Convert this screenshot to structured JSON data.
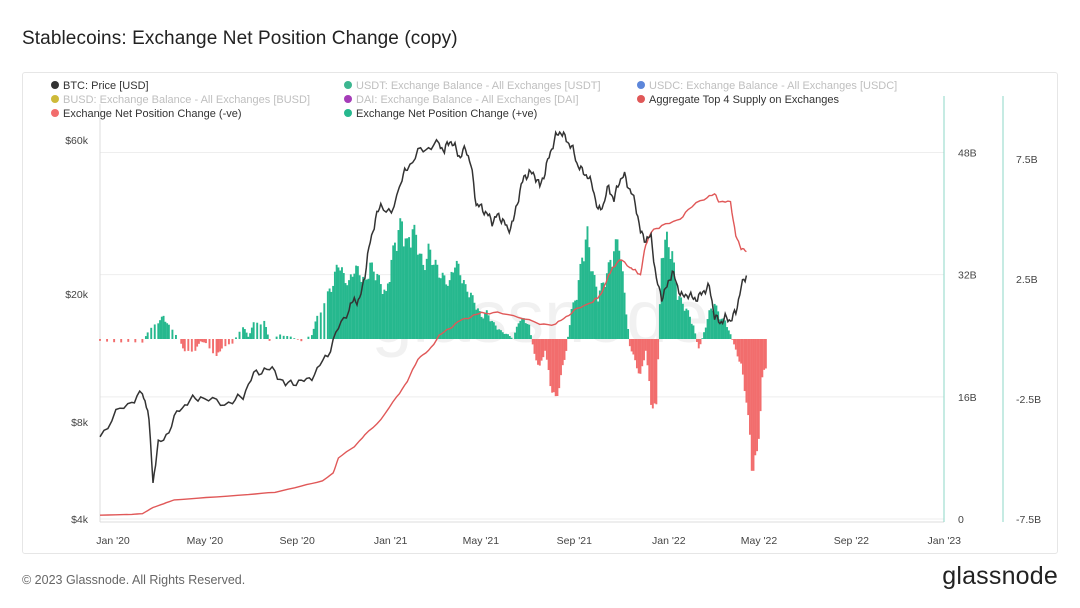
{
  "header": {
    "title": "Stablecoins: Exchange Net Position Change (copy)"
  },
  "footer": {
    "copyright": "© 2023 Glassnode. All Rights Reserved.",
    "brand": "glassnode"
  },
  "watermark": "glassnode",
  "colors": {
    "btc": "#333333",
    "usdt": "#27ae84",
    "usdc": "#4a79d6",
    "busd": "#c9b224",
    "dai": "#9b27b0",
    "aggregate": "#e05858",
    "neg": "#f26d6d",
    "pos": "#26b88e",
    "grid": "#eeeeee"
  },
  "chart_data": {
    "type": "line",
    "title": "Stablecoins: Exchange Net Position Change (copy)",
    "legend": [
      {
        "label": "BTC: Price [USD]",
        "color": "#333333",
        "active": true
      },
      {
        "label": "USDT: Exchange Balance - All Exchanges [USDT]",
        "color": "#27ae84",
        "active": false
      },
      {
        "label": "USDC: Exchange Balance - All Exchanges [USDC]",
        "color": "#4a79d6",
        "active": false
      },
      {
        "label": "BUSD: Exchange Balance - All Exchanges [BUSD]",
        "color": "#c9b224",
        "active": false
      },
      {
        "label": "DAI: Exchange Balance - All Exchanges [DAI]",
        "color": "#9b27b0",
        "active": false
      },
      {
        "label": "Aggregate Top 4 Supply on Exchanges",
        "color": "#e05858",
        "active": true
      },
      {
        "label": "Exchange Net Position Change (-ve)",
        "color": "#f26d6d",
        "active": true
      },
      {
        "label": "Exchange Net Position Change (+ve)",
        "color": "#26b88e",
        "active": true
      }
    ],
    "legend_position": "top",
    "x_range": [
      "2020-01-01",
      "2023-01-20"
    ],
    "x_ticks": [
      "Jan '20",
      "May '20",
      "Sep '20",
      "Jan '21",
      "May '21",
      "Sep '21",
      "Jan '22",
      "May '22",
      "Sep '22",
      "Jan '23"
    ],
    "y_left": {
      "scale": "log",
      "range": [
        4000,
        65000
      ],
      "ticks": [
        "$4k",
        "$8k",
        "$20k",
        "$60k"
      ],
      "tick_values": [
        4000,
        8000,
        20000,
        60000
      ]
    },
    "y_mid": {
      "range": [
        0,
        55000000000
      ],
      "ticks": [
        "0",
        "16B",
        "32B",
        "48B"
      ],
      "tick_values": [
        0,
        16000000000,
        32000000000,
        48000000000
      ]
    },
    "y_right": {
      "range": [
        -7500000000,
        10000000000
      ],
      "ticks": [
        "-7.5B",
        "-2.5B",
        "2.5B",
        "7.5B"
      ],
      "tick_values": [
        -7500000000,
        -2500000000,
        2500000000,
        7500000000
      ]
    },
    "grid": true,
    "btc_price": [
      [
        0,
        7200
      ],
      [
        3,
        8500
      ],
      [
        6,
        9300
      ],
      [
        8,
        9800
      ],
      [
        9,
        8800
      ],
      [
        10,
        5200
      ],
      [
        11,
        6800
      ],
      [
        13,
        7500
      ],
      [
        15,
        8800
      ],
      [
        17,
        9300
      ],
      [
        19,
        9600
      ],
      [
        22,
        9200
      ],
      [
        25,
        9200
      ],
      [
        27,
        9700
      ],
      [
        29,
        11200
      ],
      [
        31,
        11700
      ],
      [
        33,
        11500
      ],
      [
        35,
        10400
      ],
      [
        37,
        10700
      ],
      [
        39,
        10700
      ],
      [
        41,
        11600
      ],
      [
        43,
        13000
      ],
      [
        45,
        15600
      ],
      [
        47,
        18000
      ],
      [
        48,
        19200
      ],
      [
        49,
        19000
      ],
      [
        50,
        23000
      ],
      [
        51,
        29000
      ],
      [
        52,
        34000
      ],
      [
        53,
        38000
      ],
      [
        55,
        35000
      ],
      [
        57,
        46000
      ],
      [
        58,
        49000
      ],
      [
        60,
        55000
      ],
      [
        62,
        57000
      ],
      [
        64,
        58500
      ],
      [
        65,
        55500
      ],
      [
        66,
        60000
      ],
      [
        67,
        57000
      ],
      [
        68,
        53000
      ],
      [
        69,
        57000
      ],
      [
        70,
        50000
      ],
      [
        71,
        38000
      ],
      [
        72,
        37000
      ],
      [
        73,
        35500
      ],
      [
        74,
        33500
      ],
      [
        75,
        35000
      ],
      [
        76,
        34000
      ],
      [
        77,
        31500
      ],
      [
        78,
        33500
      ],
      [
        79,
        40000
      ],
      [
        80,
        46000
      ],
      [
        81,
        47500
      ],
      [
        82,
        47000
      ],
      [
        83,
        43000
      ],
      [
        84,
        48000
      ],
      [
        85,
        55000
      ],
      [
        86,
        61500
      ],
      [
        87,
        64000
      ],
      [
        88,
        60000
      ],
      [
        89,
        57500
      ],
      [
        90,
        51000
      ],
      [
        91,
        48000
      ],
      [
        92,
        46500
      ],
      [
        93,
        43000
      ],
      [
        94,
        36000
      ],
      [
        95,
        38000
      ],
      [
        96,
        43000
      ],
      [
        97,
        39000
      ],
      [
        98,
        45000
      ],
      [
        99,
        46500
      ],
      [
        100,
        42000
      ],
      [
        101,
        38500
      ],
      [
        102,
        31000
      ],
      [
        103,
        29500
      ],
      [
        104,
        30000
      ],
      [
        105,
        22000
      ],
      [
        106,
        19500
      ],
      [
        107,
        21000
      ],
      [
        108,
        23500
      ],
      [
        109,
        21000
      ],
      [
        110,
        19500
      ],
      [
        111,
        20000
      ],
      [
        112,
        19300
      ],
      [
        113,
        19500
      ],
      [
        114,
        20500
      ],
      [
        115,
        21000
      ],
      [
        116,
        17000
      ],
      [
        117,
        16300
      ],
      [
        118,
        16800
      ],
      [
        119,
        16600
      ],
      [
        120,
        17500
      ],
      [
        121,
        21000
      ],
      [
        122,
        22800
      ]
    ],
    "aggregate_supply": [
      [
        0,
        500000000
      ],
      [
        6,
        600000000
      ],
      [
        8,
        700000000
      ],
      [
        10,
        1500000000
      ],
      [
        12,
        2000000000
      ],
      [
        14,
        2500000000
      ],
      [
        20,
        2800000000
      ],
      [
        28,
        3200000000
      ],
      [
        33,
        3500000000
      ],
      [
        38,
        4300000000
      ],
      [
        42,
        5000000000
      ],
      [
        44,
        6000000000
      ],
      [
        45,
        8000000000
      ],
      [
        48,
        9500000000
      ],
      [
        50,
        11000000000
      ],
      [
        53,
        13000000000
      ],
      [
        56,
        16000000000
      ],
      [
        58,
        18000000000
      ],
      [
        60,
        21000000000
      ],
      [
        62,
        22000000000
      ],
      [
        64,
        24000000000
      ],
      [
        66,
        25000000000
      ],
      [
        68,
        26000000000
      ],
      [
        70,
        26500000000
      ],
      [
        72,
        27000000000
      ],
      [
        75,
        27000000000
      ],
      [
        79,
        26500000000
      ],
      [
        83,
        25500000000
      ],
      [
        86,
        25500000000
      ],
      [
        88,
        26500000000
      ],
      [
        90,
        27500000000
      ],
      [
        93,
        28500000000
      ],
      [
        94,
        29000000000
      ],
      [
        95,
        30000000000
      ],
      [
        96,
        32000000000
      ],
      [
        97,
        33000000000
      ],
      [
        98,
        34000000000
      ],
      [
        100,
        33000000000
      ],
      [
        101,
        32500000000
      ],
      [
        102,
        32000000000
      ],
      [
        103,
        36000000000
      ],
      [
        104,
        37500000000
      ],
      [
        106,
        38500000000
      ],
      [
        109,
        39000000000
      ],
      [
        111,
        40500000000
      ],
      [
        114,
        42000000000
      ],
      [
        116,
        42500000000
      ],
      [
        117,
        41500000000
      ],
      [
        119,
        41500000000
      ],
      [
        120,
        37000000000
      ],
      [
        121,
        35500000000
      ],
      [
        122,
        35000000000
      ]
    ],
    "net_position_change": [
      [
        0,
        -100000000
      ],
      [
        4,
        -150000000
      ],
      [
        8,
        -150000000
      ],
      [
        9,
        300000000
      ],
      [
        11,
        800000000
      ],
      [
        12,
        1000000000
      ],
      [
        13,
        600000000
      ],
      [
        15,
        0
      ],
      [
        16,
        -600000000
      ],
      [
        18,
        -500000000
      ],
      [
        19,
        -100000000
      ],
      [
        20,
        -200000000
      ],
      [
        22,
        -800000000
      ],
      [
        23,
        -400000000
      ],
      [
        25,
        -200000000
      ],
      [
        27,
        600000000
      ],
      [
        28,
        100000000
      ],
      [
        29,
        700000000
      ],
      [
        31,
        800000000
      ],
      [
        32,
        -100000000
      ],
      [
        34,
        200000000
      ],
      [
        36,
        100000000
      ],
      [
        38,
        -100000000
      ],
      [
        40,
        200000000
      ],
      [
        41,
        1000000000
      ],
      [
        43,
        2000000000
      ],
      [
        44,
        2500000000
      ],
      [
        45,
        3500000000
      ],
      [
        46,
        2800000000
      ],
      [
        47,
        2500000000
      ],
      [
        48,
        3200000000
      ],
      [
        49,
        3000000000
      ],
      [
        50,
        2500000000
      ],
      [
        51,
        3300000000
      ],
      [
        52,
        3000000000
      ],
      [
        53,
        2500000000
      ],
      [
        54,
        2000000000
      ],
      [
        55,
        3500000000
      ],
      [
        56,
        4700000000
      ],
      [
        57,
        5200000000
      ],
      [
        58,
        4200000000
      ],
      [
        59,
        5000000000
      ],
      [
        60,
        4300000000
      ],
      [
        61,
        3200000000
      ],
      [
        62,
        4000000000
      ],
      [
        63,
        3500000000
      ],
      [
        64,
        3000000000
      ],
      [
        65,
        2700000000
      ],
      [
        66,
        2500000000
      ],
      [
        67,
        3500000000
      ],
      [
        68,
        3000000000
      ],
      [
        69,
        2300000000
      ],
      [
        70,
        2000000000
      ],
      [
        71,
        1500000000
      ],
      [
        72,
        1000000000
      ],
      [
        73,
        1200000000
      ],
      [
        74,
        800000000
      ],
      [
        75,
        500000000
      ],
      [
        76,
        300000000
      ],
      [
        77,
        200000000
      ],
      [
        78,
        0
      ],
      [
        79,
        800000000
      ],
      [
        80,
        900000000
      ],
      [
        81,
        600000000
      ],
      [
        82,
        -700000000
      ],
      [
        83,
        -1300000000
      ],
      [
        84,
        -500000000
      ],
      [
        85,
        -2000000000
      ],
      [
        86,
        -2800000000
      ],
      [
        87,
        -1700000000
      ],
      [
        88,
        -500000000
      ],
      [
        89,
        1300000000
      ],
      [
        90,
        2000000000
      ],
      [
        91,
        3700000000
      ],
      [
        92,
        4700000000
      ],
      [
        93,
        3000000000
      ],
      [
        94,
        2000000000
      ],
      [
        95,
        2500000000
      ],
      [
        96,
        3200000000
      ],
      [
        97,
        4000000000
      ],
      [
        98,
        4500000000
      ],
      [
        99,
        2000000000
      ],
      [
        100,
        -300000000
      ],
      [
        101,
        -1000000000
      ],
      [
        102,
        -1700000000
      ],
      [
        103,
        -500000000
      ],
      [
        104,
        -2800000000
      ],
      [
        105,
        -3200000000
      ],
      [
        106,
        3800000000
      ],
      [
        107,
        4500000000
      ],
      [
        108,
        3800000000
      ],
      [
        109,
        2000000000
      ],
      [
        110,
        1600000000
      ],
      [
        111,
        1200000000
      ],
      [
        112,
        600000000
      ],
      [
        113,
        -500000000
      ],
      [
        114,
        300000000
      ],
      [
        115,
        1200000000
      ],
      [
        116,
        1600000000
      ],
      [
        117,
        1000000000
      ],
      [
        118,
        800000000
      ],
      [
        119,
        200000000
      ],
      [
        120,
        -500000000
      ],
      [
        121,
        -1200000000
      ],
      [
        122,
        -2700000000
      ],
      [
        123,
        -5600000000
      ],
      [
        124,
        -5500000000
      ],
      [
        125,
        -1800000000
      ],
      [
        126,
        -1000000000
      ]
    ]
  }
}
